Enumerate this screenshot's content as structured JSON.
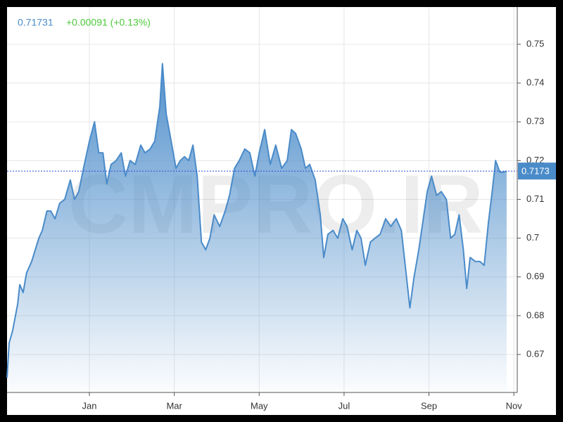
{
  "chart_data": {
    "type": "area",
    "price": 0.71731,
    "change": "+0.00091 (+0.13%)",
    "watermark": "CMPRO.IR",
    "price_line": 0.7173,
    "color": "#4a8bc9",
    "x": [
      -0.94,
      -0.89,
      -0.81,
      -0.69,
      -0.64,
      -0.56,
      -0.48,
      -0.36,
      -0.19,
      -0.11,
      0.0,
      0.09,
      0.19,
      0.3,
      0.42,
      0.55,
      0.65,
      0.75,
      0.88,
      1.0,
      1.12,
      1.22,
      1.32,
      1.41,
      1.51,
      1.63,
      1.75,
      1.85,
      1.96,
      2.08,
      2.21,
      2.31,
      2.43,
      2.54,
      2.66,
      2.72,
      2.81,
      2.91,
      3.04,
      3.14,
      3.24,
      3.34,
      3.44,
      3.54,
      3.64,
      3.74,
      3.84,
      3.94,
      4.07,
      4.2,
      4.3,
      4.42,
      4.53,
      4.66,
      4.78,
      4.9,
      5.0,
      5.13,
      5.26,
      5.39,
      5.53,
      5.66,
      5.76,
      5.86,
      5.99,
      6.09,
      6.19,
      6.32,
      6.44,
      6.52,
      6.62,
      6.74,
      6.85,
      6.97,
      7.07,
      7.19,
      7.3,
      7.4,
      7.5,
      7.62,
      7.73,
      7.85,
      7.98,
      8.1,
      8.23,
      8.35,
      8.45,
      8.55,
      8.65,
      8.76,
      8.84,
      8.96,
      9.06,
      9.18,
      9.29,
      9.41,
      9.51,
      9.61,
      9.71,
      9.81,
      9.89,
      9.97,
      10.09,
      10.2,
      10.3,
      10.4,
      10.49,
      10.57,
      10.67,
      10.75,
      10.83
    ],
    "values": [
      0.664,
      0.673,
      0.676,
      0.683,
      0.688,
      0.686,
      0.691,
      0.694,
      0.7,
      0.702,
      0.707,
      0.707,
      0.705,
      0.709,
      0.71,
      0.715,
      0.71,
      0.712,
      0.719,
      0.725,
      0.73,
      0.722,
      0.722,
      0.714,
      0.719,
      0.72,
      0.722,
      0.716,
      0.72,
      0.719,
      0.724,
      0.722,
      0.723,
      0.725,
      0.734,
      0.745,
      0.732,
      0.726,
      0.718,
      0.72,
      0.721,
      0.72,
      0.724,
      0.716,
      0.699,
      0.697,
      0.7,
      0.706,
      0.703,
      0.707,
      0.711,
      0.718,
      0.72,
      0.723,
      0.722,
      0.716,
      0.722,
      0.728,
      0.719,
      0.724,
      0.718,
      0.72,
      0.728,
      0.727,
      0.723,
      0.718,
      0.719,
      0.715,
      0.706,
      0.695,
      0.701,
      0.702,
      0.7,
      0.705,
      0.703,
      0.697,
      0.702,
      0.7,
      0.693,
      0.699,
      0.7,
      0.701,
      0.705,
      0.703,
      0.705,
      0.702,
      0.692,
      0.682,
      0.69,
      0.697,
      0.703,
      0.712,
      0.716,
      0.711,
      0.712,
      0.71,
      0.7,
      0.701,
      0.706,
      0.697,
      0.687,
      0.695,
      0.694,
      0.694,
      0.693,
      0.704,
      0.712,
      0.72,
      0.717,
      0.717,
      0.7173
    ],
    "xlim": [
      -0.94,
      11.08
    ],
    "xticks": [
      {
        "value": 1,
        "label": "Jan"
      },
      {
        "value": 3,
        "label": "Mar"
      },
      {
        "value": 5,
        "label": "May"
      },
      {
        "value": 7,
        "label": "Jul"
      },
      {
        "value": 9,
        "label": "Sep"
      },
      {
        "value": 11,
        "label": "Nov"
      }
    ],
    "ylim": [
      0.6602,
      0.7596
    ],
    "yticks": [
      0.67,
      0.68,
      0.69,
      0.7,
      0.71,
      0.72,
      0.73,
      0.74,
      0.75
    ],
    "grid": true
  }
}
